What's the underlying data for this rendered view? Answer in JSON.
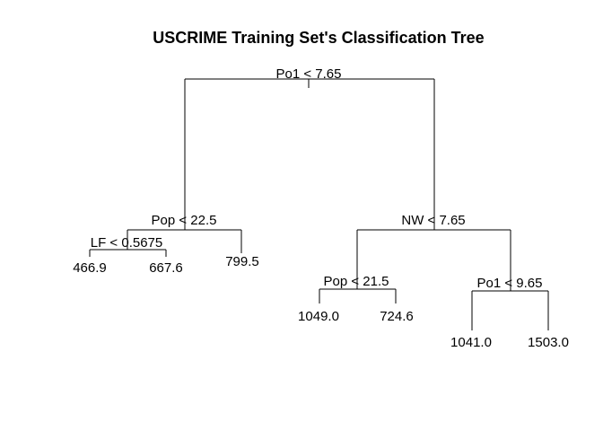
{
  "title": "USCRIME Training Set's Classification Tree",
  "tree": {
    "root": "Po1 < 7.65",
    "left_split": "Pop < 22.5",
    "left_left_split": "LF < 0.5675",
    "right_split": "NW < 7.65",
    "right_left_split": "Pop < 21.5",
    "right_right_split": "Po1 < 9.65",
    "leaves": [
      "466.9",
      "667.6",
      "799.5",
      "1049.0",
      "724.6",
      "1041.0",
      "1503.0"
    ]
  },
  "colors": {
    "lines": "#000000",
    "text": "#000000",
    "background": "#ffffff"
  }
}
